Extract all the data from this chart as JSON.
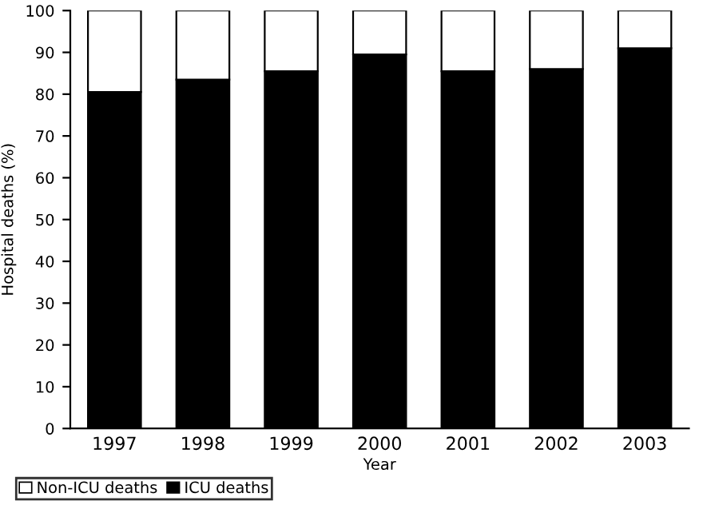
{
  "chart_data": {
    "type": "bar",
    "stacked": true,
    "xlabel": "Year",
    "ylabel": "Hospital deaths (%)",
    "categories": [
      "1997",
      "1998",
      "1999",
      "2000",
      "2001",
      "2002",
      "2003"
    ],
    "series": [
      {
        "name": "ICU deaths",
        "color": "#000000",
        "values": [
          80.5,
          83.5,
          85.5,
          89.5,
          85.5,
          86,
          91
        ]
      },
      {
        "name": "Non-ICU deaths",
        "color": "#ffffff",
        "values": [
          19.5,
          16.5,
          14.5,
          10.5,
          14.5,
          14,
          9
        ]
      }
    ],
    "ylim": [
      0,
      100
    ],
    "yticks": [
      0,
      10,
      20,
      30,
      40,
      50,
      60,
      70,
      80,
      90,
      100
    ],
    "grid": false,
    "legend": "bottom left"
  }
}
